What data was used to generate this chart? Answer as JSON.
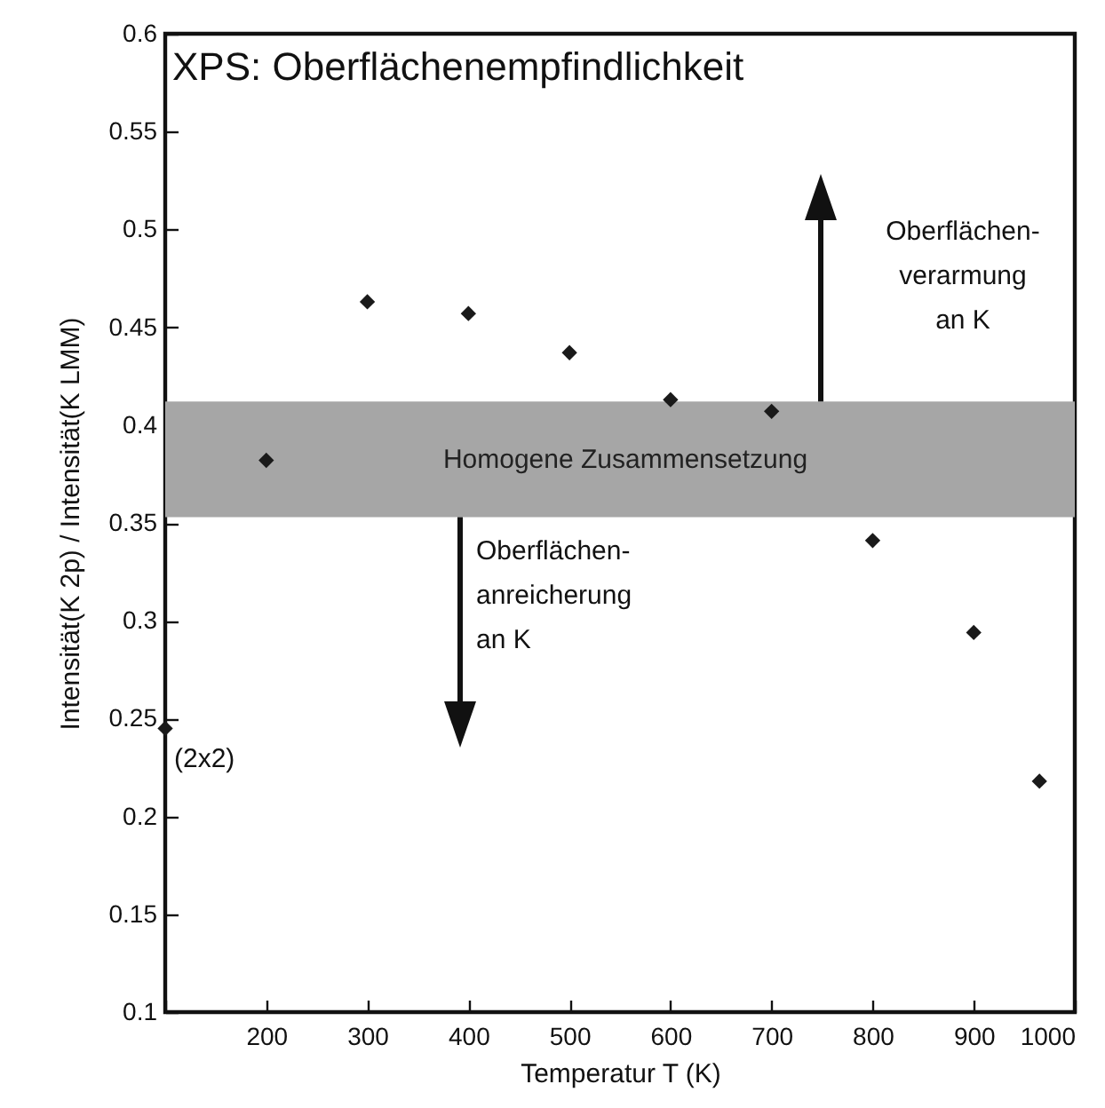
{
  "chart_data": {
    "type": "scatter",
    "title": "XPS: Oberflächenempfindlichkeit",
    "xlabel": "Temperatur T (K)",
    "ylabel": "Intensität(K 2p) / Intensität(K LMM)",
    "x": [
      100,
      200,
      300,
      400,
      500,
      600,
      700,
      800,
      900,
      965
    ],
    "series": [
      {
        "color": "#1a1a1a",
        "values": [
          0.245,
          0.382,
          0.463,
          0.457,
          0.437,
          0.413,
          0.407,
          0.341,
          0.294,
          0.218
        ]
      }
    ],
    "marker": "diamond",
    "grid": false,
    "xlim": [
      100,
      1000
    ],
    "xticks": [
      {
        "value": 100,
        "label": null
      },
      200,
      300,
      400,
      500,
      600,
      700,
      800,
      900,
      1000
    ],
    "ylim": [
      0.1,
      0.6
    ],
    "yticks": [
      0.1,
      0.15,
      0.2,
      0.25,
      0.3,
      0.35,
      0.4,
      0.45,
      0.5,
      0.55,
      0.6
    ],
    "bands": [
      {
        "axis": "y",
        "from": 0.353,
        "to": 0.412,
        "label": "Homogene Zusammensetzung",
        "color": "#a6a6a6"
      }
    ],
    "annotations": [
      {
        "text": "(2x2)",
        "x": 100,
        "y": 0.245
      },
      "Oberflächen-\nverarmung\nan K",
      "Oberflächen-\nanreicherung\nan K"
    ]
  }
}
